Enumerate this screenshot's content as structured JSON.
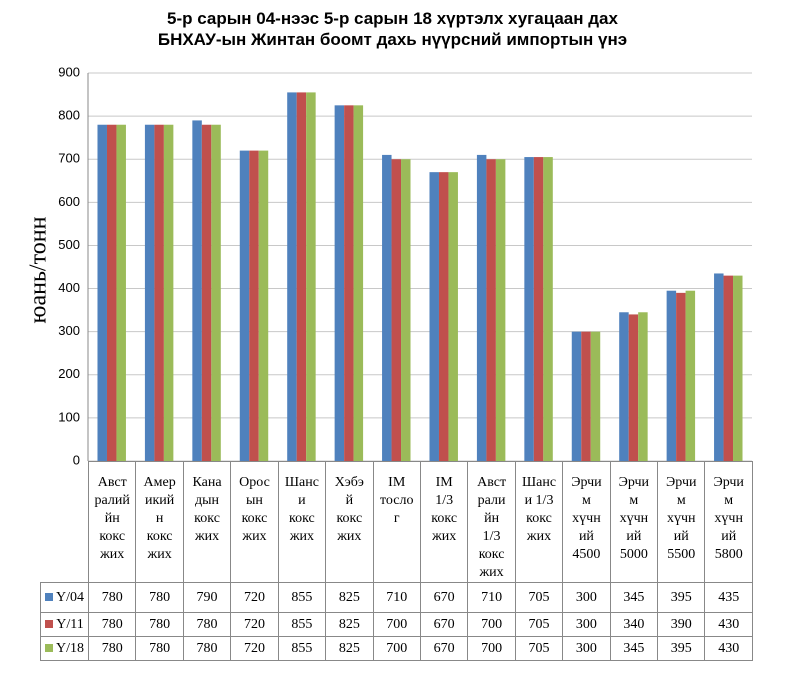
{
  "chart_data": {
    "type": "bar",
    "title": "5-р сарын  04-нээс 5-р сарын 18 хүртэлх хугацаан дах\nБНХАУ-ын Жинтан боомт дахь нүүрсний импортын  үнэ",
    "y_label": "юань/тонн",
    "categories": [
      "Авст\nралий\nйн\nкокс\nжих",
      "Амер\nикий\nн\nкокс\nжих",
      "Кана\nдын\nкокс\nжих",
      "Орос\nын\nкокс\nжих",
      "Шанс\nи\nкокс\nжих",
      "Хэбэ\nй\nкокс\nжих",
      "IM\nтосло\nг",
      "IM\n1/3\nкокс\nжих",
      "Авст\nрали\nйн\n1/3\nкокс\nжих",
      "Шанс\nи 1/3\nкокс\nжих",
      "Эрчи\nм\nхүчн\nий\n4500",
      "Эрчи\nм\nхүчн\nий\n5000",
      "Эрчи\nм\nхүчн\nий\n5500",
      "Эрчи\nм\nхүчн\nий\n5800"
    ],
    "series": [
      {
        "name": "Y/04",
        "color": "#4f81bd",
        "values": [
          780,
          780,
          790,
          720,
          855,
          825,
          710,
          670,
          710,
          705,
          300,
          345,
          395,
          435
        ]
      },
      {
        "name": "Y/11",
        "color": "#c0504d",
        "values": [
          780,
          780,
          780,
          720,
          855,
          825,
          700,
          670,
          700,
          705,
          300,
          340,
          390,
          430
        ]
      },
      {
        "name": "Y/18",
        "color": "#9bbb59",
        "values": [
          780,
          780,
          780,
          720,
          855,
          825,
          700,
          670,
          700,
          705,
          300,
          345,
          395,
          430
        ]
      }
    ],
    "ylim": [
      0,
      900
    ],
    "yticks": [
      0,
      100,
      200,
      300,
      400,
      500,
      600,
      700,
      800,
      900
    ],
    "grid": true
  }
}
